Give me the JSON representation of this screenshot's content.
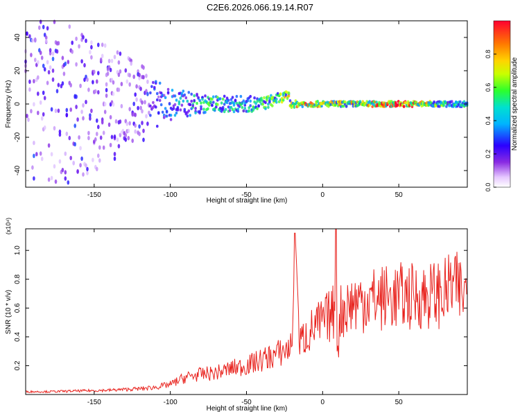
{
  "figure": {
    "title": "C2E6.2026.066.19.14.R07"
  },
  "colors": {
    "snr_line": "#e8211c",
    "axis": "#000000",
    "background": "#ffffff"
  },
  "chart_data": [
    {
      "type": "heatmap",
      "title": "C2E6.2026.066.19.14.R07",
      "xlabel": "Height of straight line (km)",
      "ylabel": "Frequency (Hz)",
      "xlim": [
        -195,
        95
      ],
      "ylim": [
        -50,
        50
      ],
      "xticks": [
        -150,
        -100,
        -50,
        0,
        50
      ],
      "xtick_labels": [
        "-150",
        "-100",
        "-50",
        "0",
        "50"
      ],
      "yticks": [
        -40,
        -20,
        0,
        20,
        40
      ],
      "ytick_labels": [
        "-40",
        "-20",
        "0",
        "20",
        "40"
      ],
      "colorbar": {
        "label": "Normalized spectral amplitude",
        "range": [
          0,
          1
        ],
        "ticks": [
          0.0,
          0.2,
          0.4,
          0.6,
          0.8
        ],
        "tick_labels": [
          "0.0",
          "0.2",
          "0.4",
          "0.6",
          "0.8"
        ],
        "colormap": "rainbow (white-violet-blue-cyan-green-yellow-red)"
      },
      "description_points": [
        {
          "x": -170,
          "spread": 50,
          "amplitude": 0.25
        },
        {
          "x": -130,
          "spread": 30,
          "amplitude": 0.2
        },
        {
          "x": -100,
          "spread": 12,
          "amplitude": 0.3
        },
        {
          "x": -75,
          "spread": 6,
          "amplitude": 0.45
        },
        {
          "x": -50,
          "spread": 6,
          "amplitude": 0.4
        },
        {
          "x": -30,
          "spread": 4,
          "amplitude": 0.5
        },
        {
          "x": -15,
          "spread": 2,
          "amplitude": 0.7
        },
        {
          "x": 20,
          "spread": 2,
          "amplitude": 0.6
        },
        {
          "x": 50,
          "spread": 2,
          "amplitude": 0.9
        },
        {
          "x": 85,
          "spread": 2,
          "amplitude": 0.4
        }
      ]
    },
    {
      "type": "line",
      "xlabel": "Height of straight line (km)",
      "ylabel": "SNR (10 * v/v)",
      "y_multiplier": "(x10⁴)",
      "xlim": [
        -195,
        95
      ],
      "ylim": [
        0,
        1.15
      ],
      "xticks": [
        -150,
        -100,
        -50,
        0,
        50
      ],
      "xtick_labels": [
        "-150",
        "-100",
        "-50",
        "0",
        "50"
      ],
      "yticks": [
        0.2,
        0.4,
        0.6,
        0.8,
        1.0
      ],
      "ytick_labels": [
        "0.2",
        "0.4",
        "0.6",
        "0.8",
        "1.0"
      ],
      "series": [
        {
          "name": "SNR",
          "x": [
            -195,
            -180,
            -160,
            -140,
            -130,
            -120,
            -110,
            -100,
            -90,
            -80,
            -70,
            -60,
            -50,
            -40,
            -30,
            -22,
            -20,
            -18,
            -15,
            -10,
            -5,
            0,
            5,
            8,
            9,
            10,
            12,
            15,
            20,
            30,
            40,
            50,
            60,
            70,
            80,
            85,
            90,
            95
          ],
          "y": [
            0.02,
            0.02,
            0.025,
            0.03,
            0.035,
            0.04,
            0.05,
            0.07,
            0.12,
            0.14,
            0.15,
            0.18,
            0.2,
            0.24,
            0.28,
            0.32,
            0.34,
            1.12,
            0.36,
            0.42,
            0.47,
            0.5,
            0.55,
            0.58,
            1.15,
            0.3,
            0.58,
            0.6,
            0.64,
            0.66,
            0.67,
            0.68,
            0.68,
            0.69,
            0.7,
            0.76,
            0.72,
            0.7
          ],
          "extent_note": "noisy trace; spikes near -18 km (1.12) and 9 km (1.15)"
        }
      ]
    }
  ]
}
